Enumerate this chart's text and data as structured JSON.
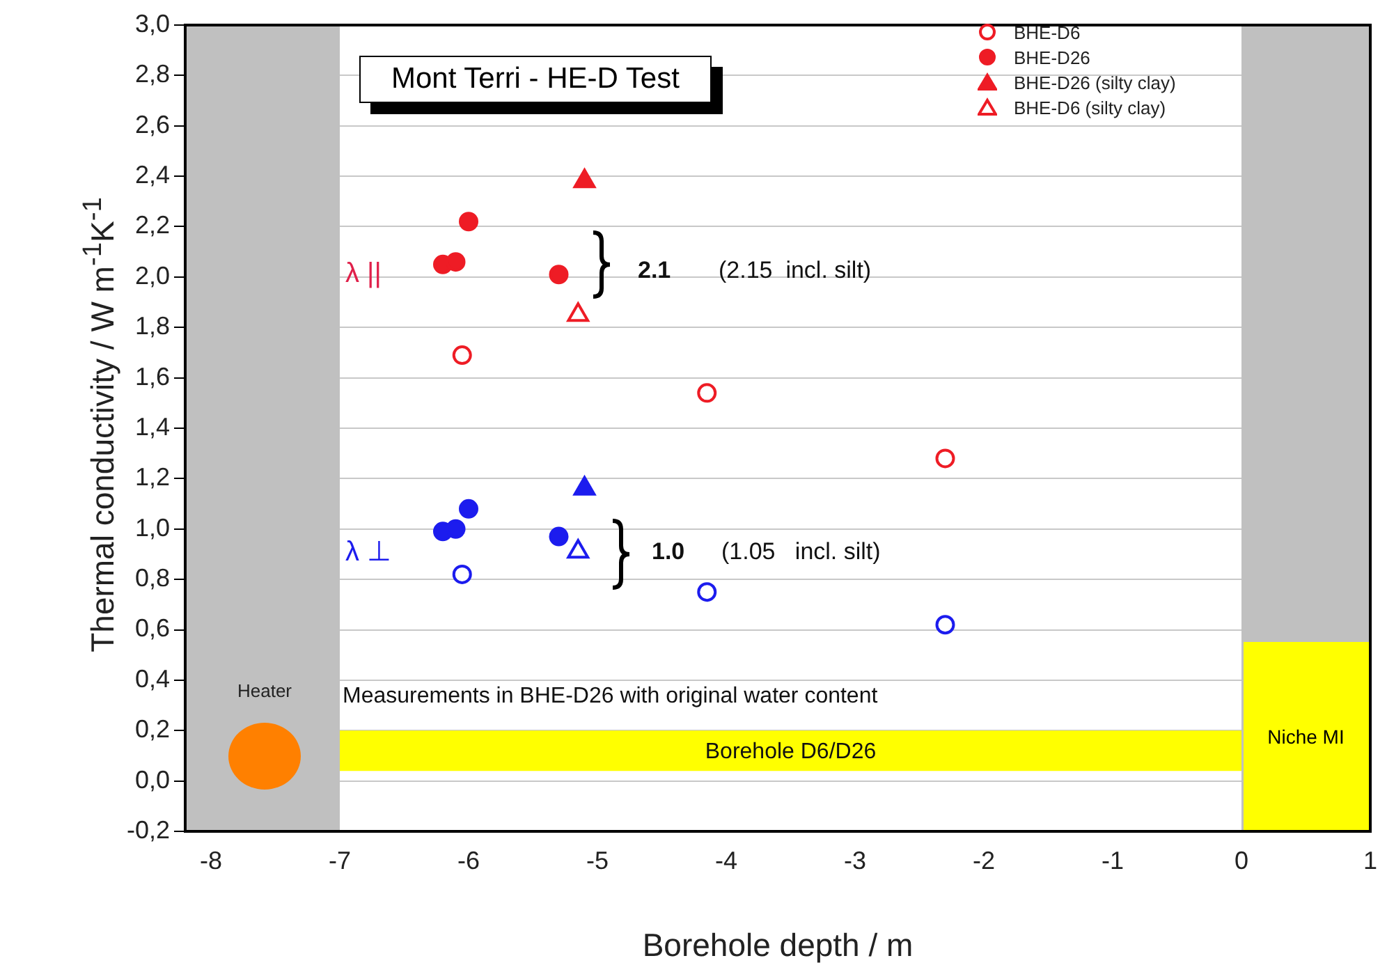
{
  "chart_data": {
    "type": "scatter",
    "title": "Mont Terri - HE-D Test",
    "xlabel": "Borehole depth / m",
    "ylabel": "Thermal conductivity  / W m$^{-1}$K$^{-1}$",
    "xlim": [
      -8.2,
      1
    ],
    "xticks": [
      -8,
      -7,
      -6,
      -5,
      -4,
      -3,
      -2,
      -1,
      0,
      1
    ],
    "ylim": [
      -0.2,
      3.0
    ],
    "yticks": [
      {
        "value": -0.2,
        "label": "-0,2"
      },
      {
        "value": 0,
        "label": "0,0"
      },
      {
        "value": 0.2,
        "label": "0,2"
      },
      {
        "value": 0.4,
        "label": "0,4"
      },
      {
        "value": 0.6,
        "label": "0,6"
      },
      {
        "value": 0.8,
        "label": "0,8"
      },
      {
        "value": 1.0,
        "label": "1,0"
      },
      {
        "value": 1.2,
        "label": "1,2"
      },
      {
        "value": 1.4,
        "label": "1,4"
      },
      {
        "value": 1.6,
        "label": "1,6"
      },
      {
        "value": 1.8,
        "label": "1,8"
      },
      {
        "value": 2.0,
        "label": "2,0"
      },
      {
        "value": 2.2,
        "label": "2,2"
      },
      {
        "value": 2.4,
        "label": "2,4"
      },
      {
        "value": 2.6,
        "label": "2,6"
      },
      {
        "value": 2.8,
        "label": "2,8"
      },
      {
        "value": 3.0,
        "label": "3,0"
      }
    ],
    "grid": "y",
    "legend": "top right",
    "series": [
      {
        "name": "BHE-D6",
        "marker": "circle",
        "color": "#ee1c25",
        "x": [
          -6.05,
          -4.15,
          -2.3,
          -6.05,
          -4.15,
          -2.3
        ],
        "values": [
          1.69,
          1.54,
          1.28,
          0.82,
          0.75,
          0.62
        ],
        "colors": [
          "#ee1c25",
          "#ee1c25",
          "#ee1c25",
          "#1c1cee",
          "#1c1cee",
          "#1c1cee"
        ]
      },
      {
        "name": "BHE-D26",
        "marker": "circle",
        "color": "#ee1c25",
        "x": [
          -6.2,
          -6.1,
          -6.0,
          -5.3,
          -6.2,
          -6.1,
          -6.0,
          -5.3
        ],
        "values": [
          2.05,
          2.06,
          2.22,
          2.01,
          0.99,
          1.0,
          1.08,
          0.97
        ],
        "colors": [
          "#ee1c25",
          "#ee1c25",
          "#ee1c25",
          "#ee1c25",
          "#1c1cee",
          "#1c1cee",
          "#1c1cee",
          "#1c1cee"
        ]
      },
      {
        "name": "BHE-D26 (silty clay)",
        "marker": "triangle",
        "color": "#ee1c25",
        "x": [
          -5.1,
          -5.1
        ],
        "values": [
          2.38,
          1.16
        ],
        "colors": [
          "#ee1c25",
          "#1c1cee"
        ]
      },
      {
        "name": "BHE-D6 (silty clay)",
        "marker": "triangle",
        "color": "#ee1c25",
        "x": [
          -5.15,
          -5.15
        ],
        "values": [
          1.85,
          0.91
        ],
        "colors": [
          "#ee1c25",
          "#1c1cee"
        ]
      }
    ],
    "bands": [
      {
        "axis": "y",
        "from": 0.04,
        "to": 0.2,
        "label": "Borehole D6/D26",
        "color": "#ffff00"
      },
      {
        "axis": "x",
        "from": -8.2,
        "to": -7,
        "color": "#c0c0c0"
      },
      {
        "axis": "x",
        "from": 0,
        "to": 1,
        "color": "#c0c0c0"
      }
    ],
    "annotations": [
      "λ ||",
      "λ ⊥",
      "2.1",
      "(2.15  incl. silt)",
      "1.0",
      "(1.05   incl. silt)",
      "Measurements in BHE-D26 with original water content",
      "Heater",
      "Niche MI"
    ]
  }
}
